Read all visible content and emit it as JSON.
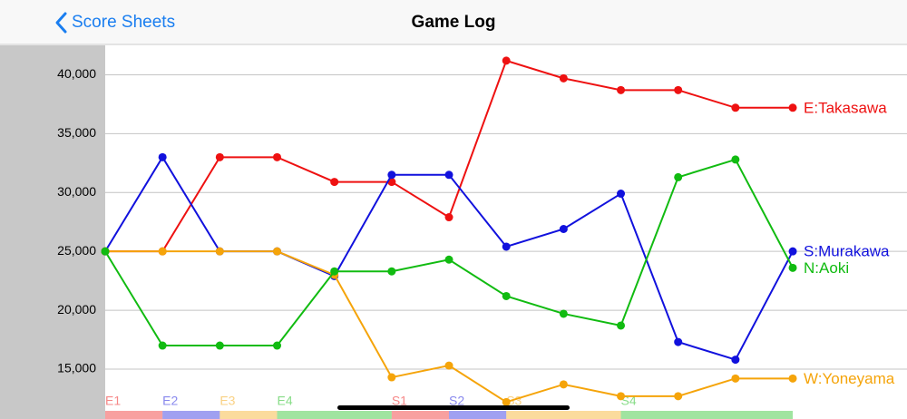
{
  "header": {
    "back": "Score Sheets",
    "title": "Game Log"
  },
  "chart_data": {
    "type": "line",
    "categories": [
      "E1",
      "E2",
      "E3",
      "E4",
      null,
      "S1",
      "S2",
      "S3",
      null,
      "S4",
      null,
      null,
      null
    ],
    "series": [
      {
        "name": "E:Takasawa",
        "color": "#ee1111",
        "values": [
          25000,
          25000,
          33000,
          33000,
          30900,
          30900,
          27900,
          41200,
          39700,
          38700,
          38700,
          37200,
          37200
        ]
      },
      {
        "name": "S:Murakawa",
        "color": "#1111dd",
        "values": [
          25000,
          33000,
          25000,
          25000,
          22900,
          31500,
          31500,
          25400,
          26900,
          29900,
          17300,
          15800,
          25000
        ]
      },
      {
        "name": "W:Yoneyama",
        "color": "#f5a40a",
        "values": [
          25000,
          25000,
          25000,
          25000,
          23000,
          14300,
          15300,
          12200,
          13700,
          12700,
          12700,
          14200,
          14200
        ]
      },
      {
        "name": "N:Aoki",
        "color": "#11bb11",
        "values": [
          25000,
          17000,
          17000,
          17000,
          23300,
          23300,
          24300,
          21200,
          19700,
          18700,
          31300,
          32800,
          23600
        ]
      }
    ],
    "ylim": [
      11300,
      42500
    ],
    "yticks": [
      {
        "value": 15000,
        "label": "15,000"
      },
      {
        "value": 20000,
        "label": "20,000"
      },
      {
        "value": 25000,
        "label": "25,000"
      },
      {
        "value": 30000,
        "label": "30,000"
      },
      {
        "value": 35000,
        "label": "35,000"
      },
      {
        "value": 40000,
        "label": "40,000"
      }
    ],
    "grid": true
  }
}
